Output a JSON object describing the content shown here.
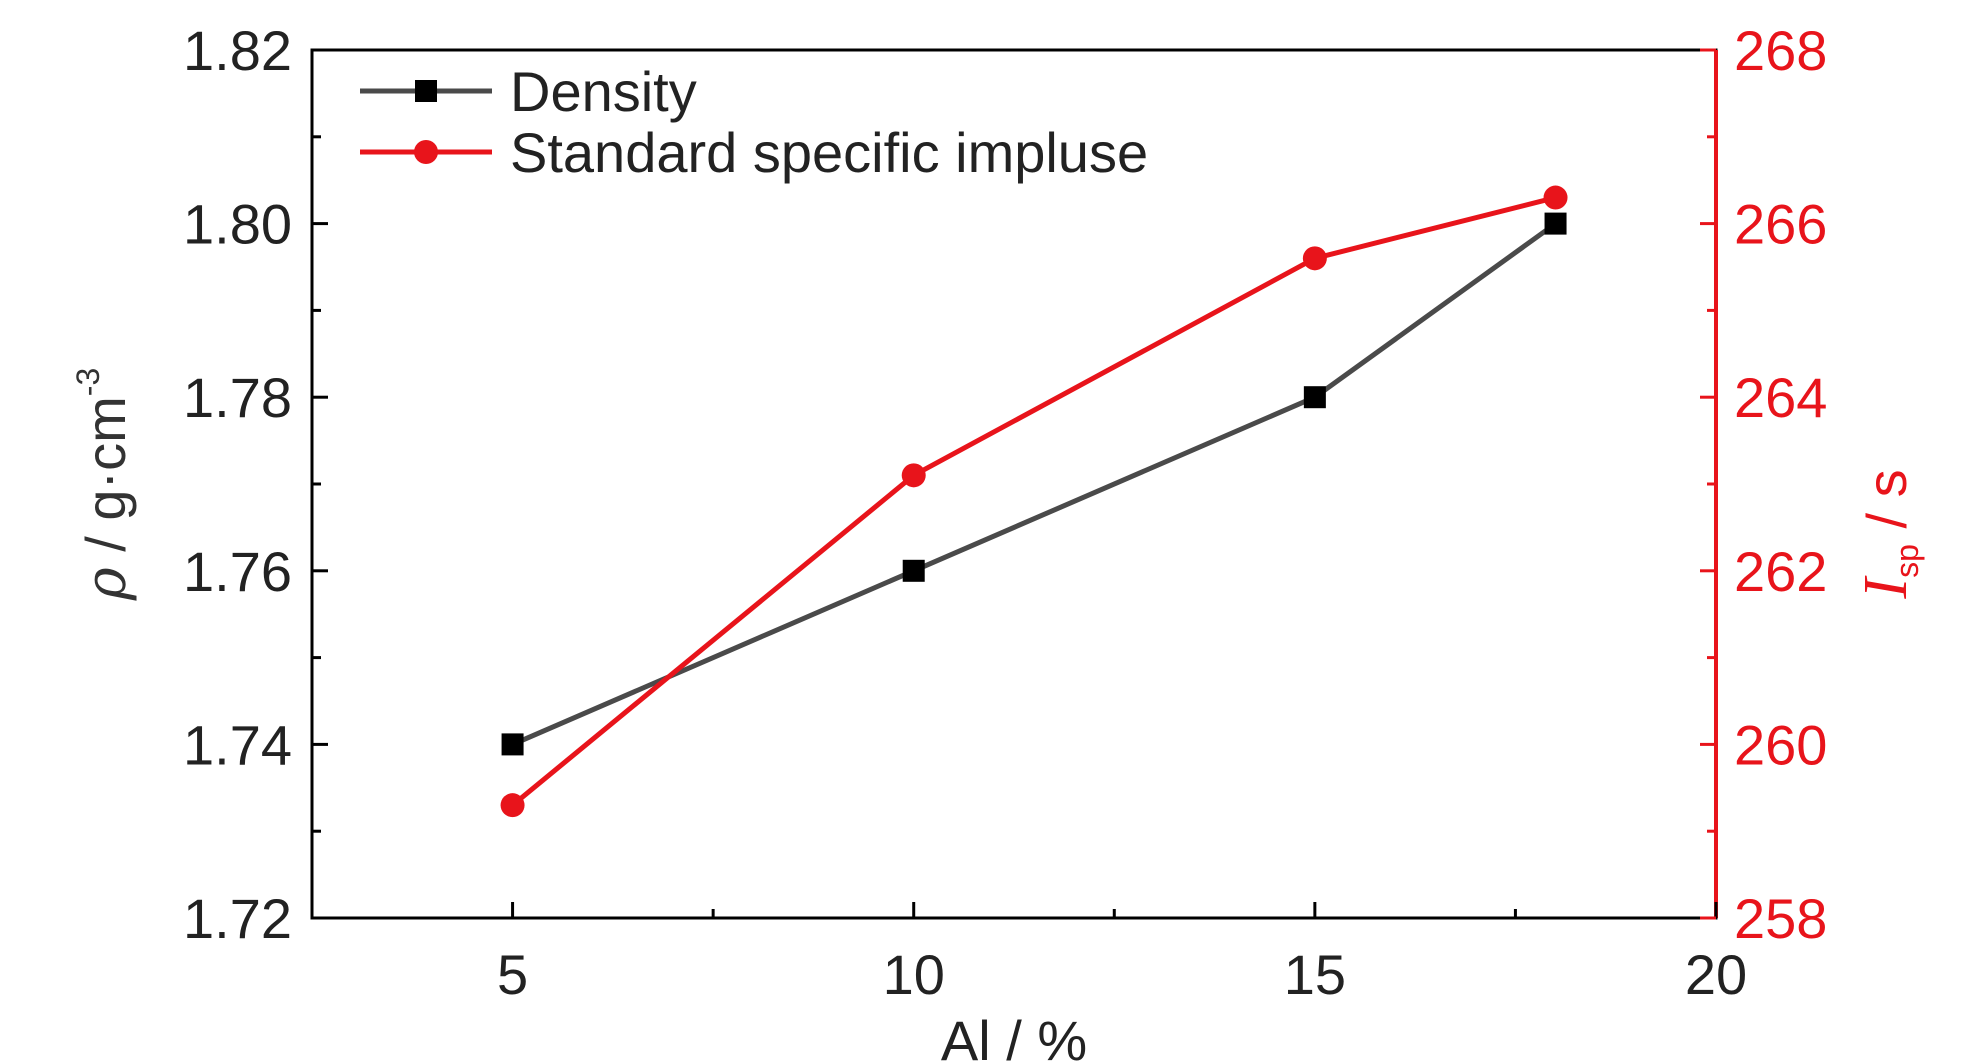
{
  "chart_data": {
    "type": "line",
    "x": [
      5,
      10,
      15,
      18
    ],
    "xlabel": "Al / %",
    "xlim": [
      2.5,
      20
    ],
    "xticks": [
      5,
      10,
      15,
      20
    ],
    "y_left": {
      "label_symbol": "ρ",
      "label_unit": " / g·cm",
      "label_superscript": "-3",
      "lim": [
        1.72,
        1.82
      ],
      "ticks": [
        "1.72",
        "1.74",
        "1.76",
        "1.78",
        "1.80",
        "1.82"
      ],
      "color": "#333333"
    },
    "y_right": {
      "label_symbol": "I",
      "label_subscript": "sp",
      "label_unit": " / s",
      "lim": [
        258,
        268
      ],
      "ticks": [
        "258",
        "260",
        "262",
        "264",
        "266",
        "268"
      ],
      "color": "#e8141b"
    },
    "series": [
      {
        "name": "Density",
        "axis": "left",
        "values": [
          1.74,
          1.76,
          1.78,
          1.8
        ],
        "color": "#4a4a4a",
        "marker": "square",
        "marker_color": "#000000"
      },
      {
        "name": "Standard specific impluse",
        "axis": "right",
        "values": [
          259.3,
          263.1,
          265.6,
          266.3
        ],
        "color": "#e8141b",
        "marker": "circle",
        "marker_color": "#e8141b"
      }
    ],
    "legend_position": "top-left",
    "grid": false
  }
}
